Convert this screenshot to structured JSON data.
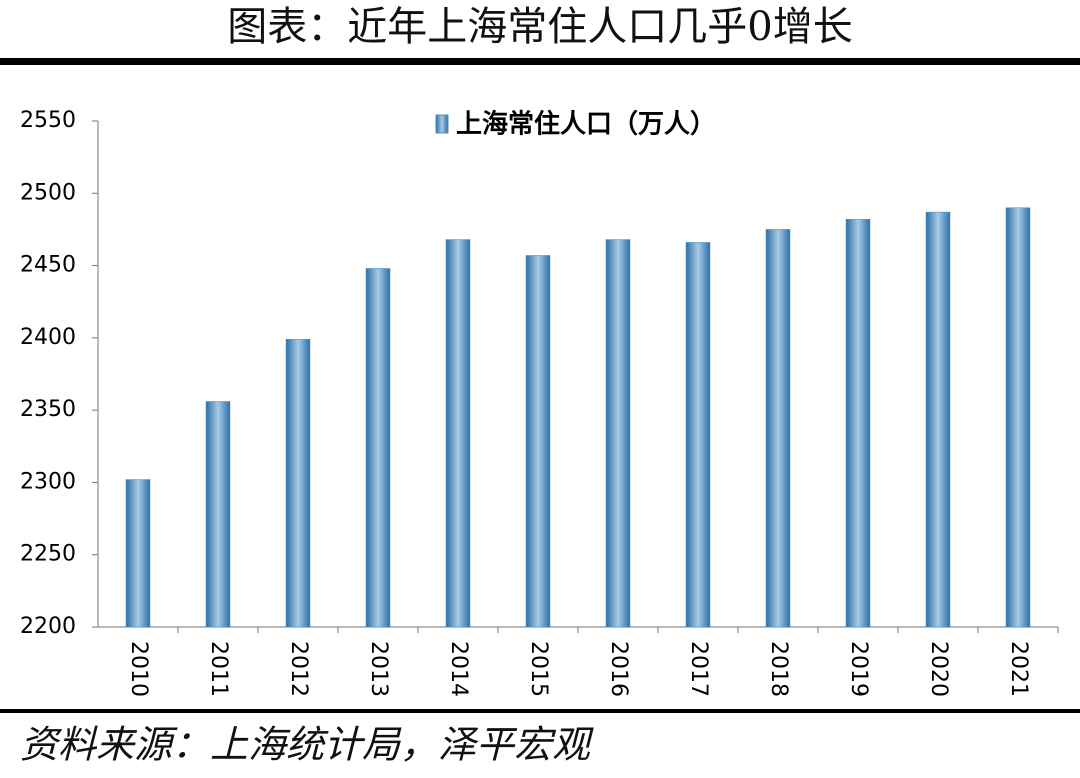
{
  "title": "图表：近年上海常住人口几乎0增长",
  "source": "资料来源：上海统计局，泽平宏观",
  "chart_data": {
    "type": "bar",
    "categories": [
      "2010",
      "2011",
      "2012",
      "2013",
      "2014",
      "2015",
      "2016",
      "2017",
      "2018",
      "2019",
      "2020",
      "2021"
    ],
    "series": [
      {
        "name": "上海常住人口（万人）",
        "color": "#4a8fc4",
        "values": [
          2302,
          2356,
          2399,
          2448,
          2468,
          2457,
          2468,
          2466,
          2475,
          2482,
          2487,
          2490
        ]
      }
    ],
    "ylim": [
      2200,
      2550
    ],
    "yticks": [
      2200,
      2250,
      2300,
      2350,
      2400,
      2450,
      2500,
      2550
    ],
    "grid": false
  }
}
